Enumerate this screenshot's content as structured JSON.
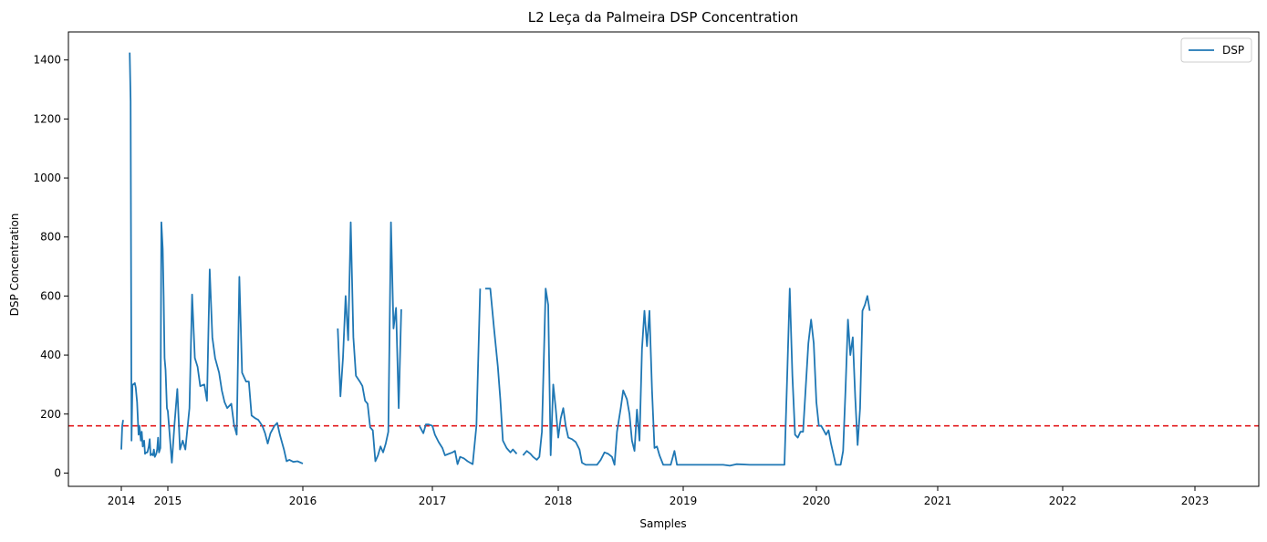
{
  "chart_data": {
    "type": "line",
    "title": "L2 Leça da Palmeira DSP Concentration",
    "xlabel": "Samples",
    "ylabel": "DSP Concentration",
    "x_tick_labels": [
      "2014",
      "2015",
      "2016",
      "2017",
      "2018",
      "2019",
      "2020",
      "2021",
      "2022",
      "2023"
    ],
    "y_ticks": [
      0,
      200,
      400,
      600,
      800,
      1000,
      1200,
      1400
    ],
    "xlim": [
      2013.55,
      2023.45
    ],
    "ylim": [
      -45,
      1495
    ],
    "legend": {
      "placement": "top-right",
      "entries": [
        "DSP"
      ]
    },
    "threshold": {
      "value": 160,
      "style": "dashed",
      "color": "#e31a1c"
    },
    "series": [
      {
        "name": "DSP",
        "color": "#1f77b4",
        "segments": [
          [
            [
              2014.0,
              80
            ],
            [
              2014.02,
              160
            ],
            [
              2014.04,
              180
            ]
          ],
          [
            [
              2014.18,
              1425
            ],
            [
              2014.2,
              1260
            ],
            [
              2014.22,
              110
            ],
            [
              2014.24,
              300
            ],
            [
              2014.26,
              300
            ],
            [
              2014.29,
              305
            ],
            [
              2014.31,
              290
            ],
            [
              2014.34,
              240
            ],
            [
              2014.37,
              130
            ],
            [
              2014.39,
              160
            ],
            [
              2014.42,
              110
            ],
            [
              2014.44,
              140
            ],
            [
              2014.46,
              90
            ],
            [
              2014.49,
              110
            ],
            [
              2014.51,
              65
            ],
            [
              2014.54,
              70
            ],
            [
              2014.56,
              70
            ],
            [
              2014.59,
              90
            ],
            [
              2014.61,
              115
            ],
            [
              2014.63,
              60
            ],
            [
              2014.66,
              65
            ],
            [
              2014.68,
              60
            ],
            [
              2014.7,
              80
            ],
            [
              2014.72,
              55
            ],
            [
              2014.75,
              65
            ],
            [
              2014.77,
              80
            ],
            [
              2014.79,
              120
            ],
            [
              2014.81,
              70
            ],
            [
              2014.84,
              85
            ],
            [
              2014.86,
              850
            ],
            [
              2014.89,
              760
            ],
            [
              2014.91,
              600
            ],
            [
              2014.93,
              390
            ],
            [
              2014.95,
              350
            ],
            [
              2014.98,
              220
            ],
            [
              2015.0,
              210
            ],
            [
              2015.03,
              35
            ],
            [
              2015.05,
              170
            ],
            [
              2015.07,
              285
            ],
            [
              2015.09,
              80
            ],
            [
              2015.11,
              110
            ],
            [
              2015.13,
              80
            ],
            [
              2015.16,
              220
            ],
            [
              2015.18,
              605
            ],
            [
              2015.2,
              390
            ],
            [
              2015.22,
              360
            ],
            [
              2015.24,
              295
            ],
            [
              2015.27,
              300
            ],
            [
              2015.29,
              245
            ],
            [
              2015.31,
              690
            ],
            [
              2015.33,
              460
            ],
            [
              2015.35,
              390
            ],
            [
              2015.38,
              340
            ],
            [
              2015.4,
              280
            ],
            [
              2015.42,
              240
            ],
            [
              2015.44,
              220
            ],
            [
              2015.47,
              235
            ],
            [
              2015.49,
              165
            ],
            [
              2015.51,
              130
            ],
            [
              2015.53,
              665
            ],
            [
              2015.55,
              340
            ],
            [
              2015.58,
              310
            ],
            [
              2015.6,
              310
            ],
            [
              2015.62,
              195
            ],
            [
              2015.65,
              185
            ],
            [
              2015.67,
              180
            ],
            [
              2015.7,
              160
            ],
            [
              2015.72,
              135
            ],
            [
              2015.74,
              100
            ],
            [
              2015.76,
              135
            ],
            [
              2015.79,
              160
            ],
            [
              2015.81,
              170
            ],
            [
              2015.83,
              130
            ],
            [
              2015.86,
              80
            ],
            [
              2015.88,
              40
            ],
            [
              2015.9,
              45
            ],
            [
              2015.93,
              38
            ],
            [
              2015.96,
              40
            ],
            [
              2016.0,
              32
            ]
          ],
          [
            [
              2016.27,
              490
            ],
            [
              2016.29,
              260
            ],
            [
              2016.31,
              390
            ],
            [
              2016.33,
              600
            ],
            [
              2016.35,
              450
            ],
            [
              2016.37,
              850
            ],
            [
              2016.39,
              460
            ],
            [
              2016.41,
              330
            ],
            [
              2016.44,
              310
            ],
            [
              2016.46,
              295
            ],
            [
              2016.48,
              245
            ],
            [
              2016.5,
              235
            ],
            [
              2016.52,
              155
            ],
            [
              2016.54,
              145
            ],
            [
              2016.56,
              40
            ],
            [
              2016.58,
              60
            ],
            [
              2016.6,
              90
            ],
            [
              2016.62,
              70
            ],
            [
              2016.64,
              100
            ],
            [
              2016.66,
              140
            ],
            [
              2016.68,
              850
            ],
            [
              2016.7,
              490
            ],
            [
              2016.72,
              560
            ],
            [
              2016.74,
              220
            ],
            [
              2016.76,
              555
            ]
          ],
          [
            [
              2016.9,
              160
            ],
            [
              2016.93,
              135
            ],
            [
              2016.95,
              165
            ],
            [
              2016.97,
              165
            ],
            [
              2017.0,
              160
            ],
            [
              2017.02,
              130
            ],
            [
              2017.05,
              105
            ],
            [
              2017.08,
              85
            ],
            [
              2017.1,
              60
            ],
            [
              2017.13,
              65
            ],
            [
              2017.16,
              70
            ],
            [
              2017.18,
              75
            ],
            [
              2017.2,
              30
            ],
            [
              2017.22,
              55
            ],
            [
              2017.25,
              50
            ],
            [
              2017.28,
              40
            ],
            [
              2017.3,
              35
            ],
            [
              2017.32,
              30
            ],
            [
              2017.35,
              160
            ],
            [
              2017.38,
              625
            ]
          ],
          [
            [
              2017.42,
              625
            ],
            [
              2017.46,
              625
            ],
            [
              2017.49,
              490
            ],
            [
              2017.52,
              360
            ],
            [
              2017.54,
              250
            ],
            [
              2017.56,
              110
            ],
            [
              2017.59,
              85
            ],
            [
              2017.62,
              70
            ],
            [
              2017.64,
              80
            ],
            [
              2017.67,
              65
            ]
          ],
          [
            [
              2017.72,
              60
            ],
            [
              2017.75,
              75
            ],
            [
              2017.78,
              65
            ],
            [
              2017.8,
              55
            ],
            [
              2017.83,
              45
            ],
            [
              2017.85,
              55
            ],
            [
              2017.87,
              140
            ],
            [
              2017.9,
              625
            ],
            [
              2017.92,
              570
            ],
            [
              2017.94,
              60
            ],
            [
              2017.96,
              300
            ],
            [
              2017.98,
              220
            ],
            [
              2018.0,
              120
            ],
            [
              2018.02,
              185
            ],
            [
              2018.04,
              220
            ],
            [
              2018.06,
              160
            ],
            [
              2018.08,
              120
            ],
            [
              2018.11,
              115
            ],
            [
              2018.14,
              105
            ],
            [
              2018.17,
              80
            ],
            [
              2018.19,
              35
            ],
            [
              2018.22,
              28
            ],
            [
              2018.25,
              28
            ],
            [
              2018.28,
              28
            ],
            [
              2018.31,
              28
            ],
            [
              2018.34,
              45
            ],
            [
              2018.37,
              70
            ],
            [
              2018.4,
              65
            ],
            [
              2018.43,
              55
            ],
            [
              2018.45,
              28
            ],
            [
              2018.47,
              140
            ],
            [
              2018.5,
              220
            ],
            [
              2018.52,
              280
            ],
            [
              2018.55,
              250
            ],
            [
              2018.57,
              200
            ],
            [
              2018.59,
              110
            ],
            [
              2018.61,
              75
            ],
            [
              2018.63,
              215
            ],
            [
              2018.65,
              110
            ],
            [
              2018.67,
              420
            ],
            [
              2018.69,
              550
            ],
            [
              2018.71,
              430
            ],
            [
              2018.73,
              550
            ],
            [
              2018.75,
              280
            ],
            [
              2018.77,
              85
            ],
            [
              2018.79,
              90
            ],
            [
              2018.81,
              60
            ],
            [
              2018.84,
              28
            ],
            [
              2018.87,
              28
            ],
            [
              2018.9,
              28
            ],
            [
              2018.93,
              75
            ],
            [
              2018.95,
              28
            ],
            [
              2019.0,
              28
            ],
            [
              2019.1,
              28
            ],
            [
              2019.2,
              28
            ],
            [
              2019.3,
              28
            ],
            [
              2019.35,
              25
            ],
            [
              2019.4,
              30
            ],
            [
              2019.5,
              28
            ],
            [
              2019.6,
              28
            ],
            [
              2019.7,
              28
            ],
            [
              2019.76,
              28
            ],
            [
              2019.78,
              320
            ],
            [
              2019.8,
              625
            ],
            [
              2019.82,
              330
            ],
            [
              2019.84,
              130
            ],
            [
              2019.86,
              120
            ],
            [
              2019.88,
              140
            ],
            [
              2019.9,
              140
            ],
            [
              2019.92,
              290
            ],
            [
              2019.94,
              440
            ],
            [
              2019.96,
              520
            ],
            [
              2019.98,
              440
            ],
            [
              2020.0,
              240
            ],
            [
              2020.02,
              160
            ],
            [
              2020.04,
              160
            ],
            [
              2020.06,
              145
            ],
            [
              2020.08,
              130
            ],
            [
              2020.1,
              145
            ],
            [
              2020.12,
              100
            ],
            [
              2020.14,
              65
            ],
            [
              2020.16,
              28
            ],
            [
              2020.18,
              28
            ],
            [
              2020.2,
              28
            ],
            [
              2020.22,
              75
            ],
            [
              2020.24,
              280
            ],
            [
              2020.26,
              520
            ],
            [
              2020.28,
              400
            ],
            [
              2020.3,
              460
            ],
            [
              2020.32,
              255
            ],
            [
              2020.34,
              95
            ],
            [
              2020.36,
              220
            ],
            [
              2020.38,
              550
            ],
            [
              2020.4,
              570
            ],
            [
              2020.42,
              600
            ],
            [
              2020.44,
              550
            ]
          ]
        ]
      }
    ]
  }
}
